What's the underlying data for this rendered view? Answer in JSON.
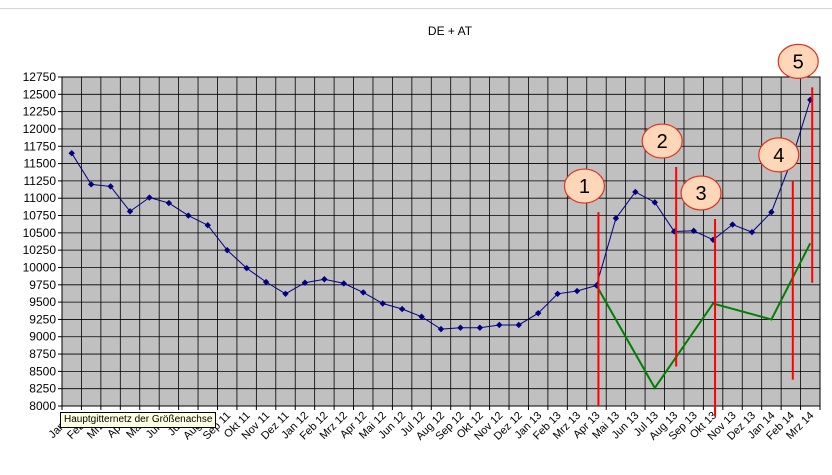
{
  "chart_data": {
    "type": "line",
    "title": "DE + AT",
    "xlabel": "",
    "ylabel": "",
    "ylim": [
      8000,
      12750
    ],
    "ytick_step": 250,
    "grid": true,
    "categories": [
      "Jan 11",
      "Feb 11",
      "Mrz 11",
      "Apr 11",
      "Mai 11",
      "Jun 11",
      "Jul 11",
      "Aug 11",
      "Sep 11",
      "Okt 11",
      "Nov 11",
      "Dez 11",
      "Jan 12",
      "Feb 12",
      "Mrz 12",
      "Apr 12",
      "Mai 12",
      "Jun 12",
      "Jul 12",
      "Aug 12",
      "Sep 12",
      "Okt 12",
      "Nov 12",
      "Dez 12",
      "Jan 13",
      "Feb 13",
      "Mrz 13",
      "Apr 13",
      "Mai 13",
      "Jun 13",
      "Jul 13",
      "Aug 13",
      "Sep 13",
      "Okt 13",
      "Nov 13",
      "Dez 13",
      "Jan 14",
      "Feb 14",
      "Mrz 14"
    ],
    "series": [
      {
        "color": "#000080",
        "marker": "diamond",
        "values": [
          11650,
          11200,
          11170,
          10810,
          11010,
          10930,
          10750,
          10610,
          10250,
          9990,
          9790,
          9620,
          9780,
          9830,
          9770,
          9640,
          9480,
          9400,
          9290,
          9110,
          9130,
          9130,
          9170,
          9170,
          9340,
          9620,
          9660,
          9740,
          10710,
          11090,
          10940,
          10520,
          10530,
          10400,
          10620,
          10510,
          10800,
          11520,
          12420
        ]
      },
      {
        "color": "#008000",
        "marker": "none",
        "points": [
          [
            "Apr 13",
            9740
          ],
          [
            "Jul 13",
            8260
          ],
          [
            "Okt 13",
            9480
          ],
          [
            "Jan 14",
            9250
          ],
          [
            "Mrz 14",
            10350
          ]
        ]
      }
    ],
    "annotations": [
      {
        "label": "1",
        "x": "Apr 13",
        "line_from": 8000,
        "line_to": 10800
      },
      {
        "label": "2",
        "x": "Aug 13",
        "line_from": 8570,
        "line_to": 11450
      },
      {
        "label": "3",
        "x": "Okt 13",
        "line_from": 7850,
        "line_to": 10700
      },
      {
        "label": "4",
        "x": "Feb 14",
        "line_from": 8380,
        "line_to": 11250
      },
      {
        "label": "5",
        "x": "Mrz 14",
        "line_from": 9780,
        "line_to": 12600
      }
    ],
    "colors": {
      "plot_background": "#c0c0c0",
      "gridline": "#000000",
      "annotation_line": "#ff0000",
      "callout_fill": "#fdd7b7",
      "callout_border": "#e3301f"
    }
  },
  "tooltip": {
    "text": "Hauptgitternetz der Größenachse"
  }
}
